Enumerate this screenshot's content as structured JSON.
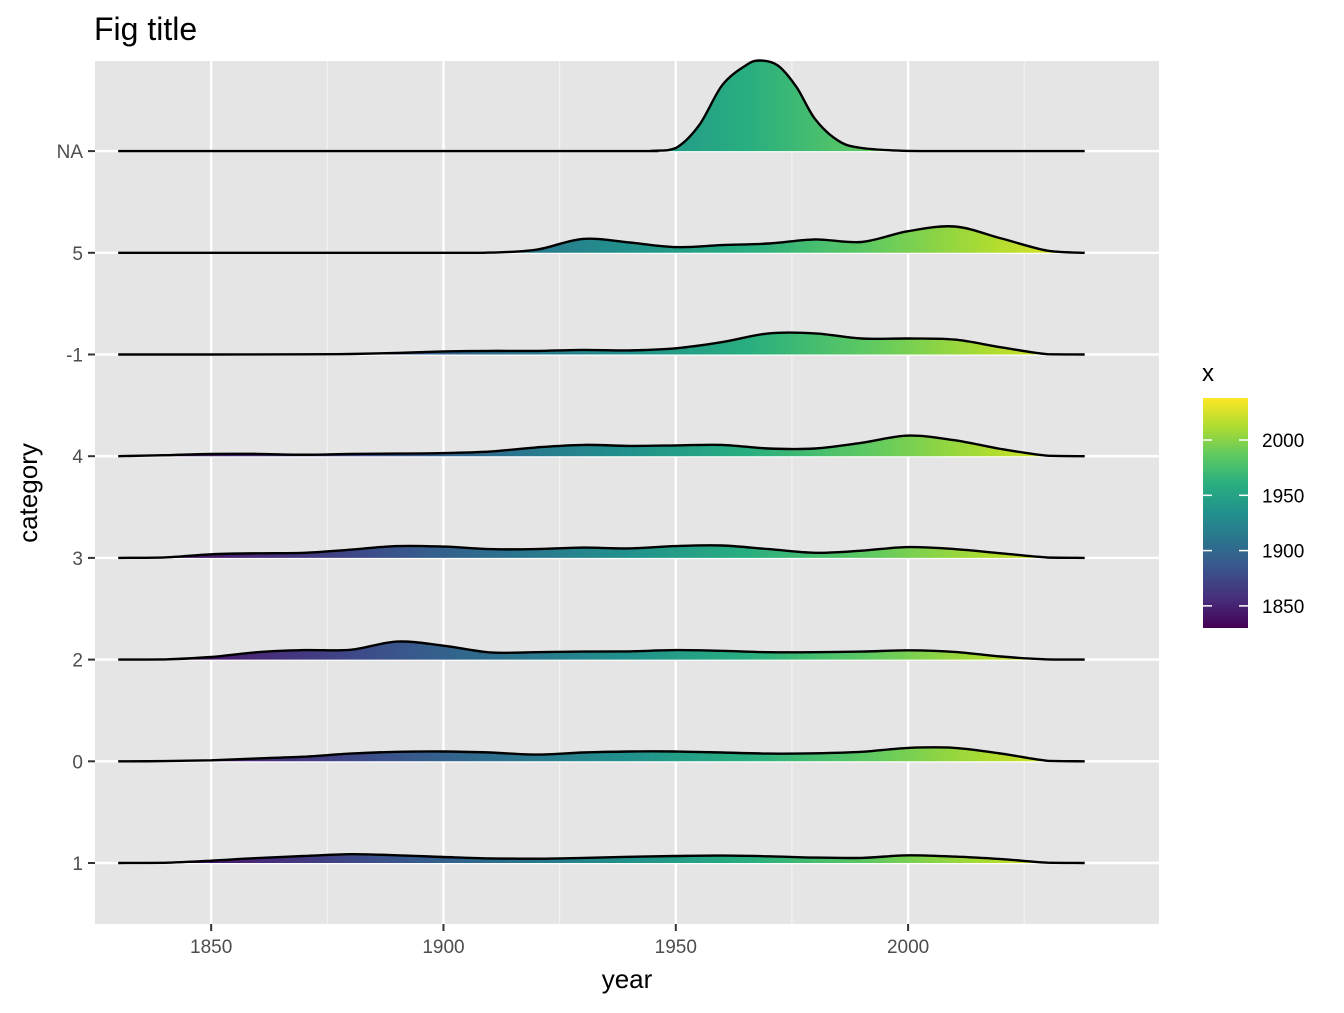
{
  "chart_data": {
    "type": "area",
    "subtype": "ridgeline density",
    "title": "Fig title",
    "xlabel": "year",
    "ylabel": "category",
    "xlim": [
      1825,
      2054
    ],
    "x_ticks": [
      1850,
      1900,
      1950,
      2000
    ],
    "categories": [
      "1",
      "0",
      "2",
      "3",
      "4",
      "-1",
      "5",
      "NA"
    ],
    "grid": true,
    "fill": "gradient by x (viridis)",
    "density_range": [
      1830,
      2038
    ],
    "series": [
      {
        "category": "1",
        "points": [
          [
            1830,
            0
          ],
          [
            1840,
            0.02
          ],
          [
            1850,
            0.22
          ],
          [
            1860,
            0.48
          ],
          [
            1870,
            0.68
          ],
          [
            1880,
            0.85
          ],
          [
            1890,
            0.75
          ],
          [
            1900,
            0.58
          ],
          [
            1910,
            0.45
          ],
          [
            1920,
            0.42
          ],
          [
            1930,
            0.5
          ],
          [
            1940,
            0.6
          ],
          [
            1950,
            0.68
          ],
          [
            1960,
            0.72
          ],
          [
            1970,
            0.65
          ],
          [
            1980,
            0.52
          ],
          [
            1990,
            0.5
          ],
          [
            2000,
            0.75
          ],
          [
            2010,
            0.62
          ],
          [
            2020,
            0.38
          ],
          [
            2030,
            0.03
          ],
          [
            2038,
            0
          ]
        ]
      },
      {
        "category": "0",
        "points": [
          [
            1830,
            0
          ],
          [
            1840,
            0.02
          ],
          [
            1850,
            0.1
          ],
          [
            1860,
            0.28
          ],
          [
            1870,
            0.45
          ],
          [
            1880,
            0.75
          ],
          [
            1890,
            0.92
          ],
          [
            1900,
            0.95
          ],
          [
            1910,
            0.85
          ],
          [
            1920,
            0.65
          ],
          [
            1930,
            0.85
          ],
          [
            1940,
            0.95
          ],
          [
            1950,
            0.95
          ],
          [
            1960,
            0.85
          ],
          [
            1970,
            0.75
          ],
          [
            1980,
            0.78
          ],
          [
            1990,
            0.92
          ],
          [
            2000,
            1.3
          ],
          [
            2010,
            1.3
          ],
          [
            2020,
            0.75
          ],
          [
            2030,
            0.05
          ],
          [
            2038,
            0
          ]
        ]
      },
      {
        "category": "2",
        "points": [
          [
            1830,
            0
          ],
          [
            1840,
            0.02
          ],
          [
            1850,
            0.25
          ],
          [
            1860,
            0.72
          ],
          [
            1870,
            0.92
          ],
          [
            1880,
            0.95
          ],
          [
            1890,
            1.75
          ],
          [
            1900,
            1.35
          ],
          [
            1910,
            0.7
          ],
          [
            1920,
            0.72
          ],
          [
            1930,
            0.78
          ],
          [
            1940,
            0.8
          ],
          [
            1950,
            0.92
          ],
          [
            1960,
            0.85
          ],
          [
            1970,
            0.72
          ],
          [
            1980,
            0.72
          ],
          [
            1990,
            0.78
          ],
          [
            2000,
            0.9
          ],
          [
            2010,
            0.75
          ],
          [
            2020,
            0.3
          ],
          [
            2030,
            0.02
          ],
          [
            2038,
            0
          ]
        ]
      },
      {
        "category": "3",
        "points": [
          [
            1830,
            0
          ],
          [
            1840,
            0.05
          ],
          [
            1850,
            0.35
          ],
          [
            1860,
            0.45
          ],
          [
            1870,
            0.5
          ],
          [
            1880,
            0.8
          ],
          [
            1890,
            1.15
          ],
          [
            1900,
            1.1
          ],
          [
            1910,
            0.85
          ],
          [
            1920,
            0.85
          ],
          [
            1930,
            1.0
          ],
          [
            1940,
            0.92
          ],
          [
            1950,
            1.15
          ],
          [
            1960,
            1.2
          ],
          [
            1970,
            0.85
          ],
          [
            1980,
            0.5
          ],
          [
            1990,
            0.7
          ],
          [
            2000,
            1.05
          ],
          [
            2010,
            0.85
          ],
          [
            2020,
            0.45
          ],
          [
            2030,
            0.04
          ],
          [
            2038,
            0
          ]
        ]
      },
      {
        "category": "4",
        "points": [
          [
            1830,
            0
          ],
          [
            1840,
            0.1
          ],
          [
            1850,
            0.22
          ],
          [
            1860,
            0.22
          ],
          [
            1870,
            0.15
          ],
          [
            1880,
            0.22
          ],
          [
            1890,
            0.25
          ],
          [
            1900,
            0.3
          ],
          [
            1910,
            0.45
          ],
          [
            1920,
            0.85
          ],
          [
            1930,
            1.1
          ],
          [
            1940,
            1.0
          ],
          [
            1950,
            1.05
          ],
          [
            1960,
            1.1
          ],
          [
            1970,
            0.75
          ],
          [
            1980,
            0.75
          ],
          [
            1990,
            1.3
          ],
          [
            2000,
            2.0
          ],
          [
            2010,
            1.55
          ],
          [
            2020,
            0.7
          ],
          [
            2030,
            0.05
          ],
          [
            2038,
            0
          ]
        ]
      },
      {
        "category": "-1",
        "points": [
          [
            1830,
            0
          ],
          [
            1850,
            0
          ],
          [
            1870,
            0.02
          ],
          [
            1880,
            0.05
          ],
          [
            1890,
            0.15
          ],
          [
            1900,
            0.3
          ],
          [
            1910,
            0.35
          ],
          [
            1920,
            0.35
          ],
          [
            1930,
            0.45
          ],
          [
            1940,
            0.4
          ],
          [
            1950,
            0.6
          ],
          [
            1960,
            1.2
          ],
          [
            1970,
            2.05
          ],
          [
            1980,
            2.05
          ],
          [
            1990,
            1.55
          ],
          [
            2000,
            1.55
          ],
          [
            2010,
            1.45
          ],
          [
            2020,
            0.7
          ],
          [
            2030,
            0.03
          ],
          [
            2038,
            0
          ]
        ]
      },
      {
        "category": "5",
        "points": [
          [
            1830,
            0
          ],
          [
            1900,
            0
          ],
          [
            1910,
            0.02
          ],
          [
            1920,
            0.3
          ],
          [
            1930,
            1.35
          ],
          [
            1940,
            1.0
          ],
          [
            1950,
            0.55
          ],
          [
            1960,
            0.75
          ],
          [
            1970,
            0.9
          ],
          [
            1980,
            1.3
          ],
          [
            1990,
            1.05
          ],
          [
            2000,
            2.1
          ],
          [
            2010,
            2.55
          ],
          [
            2020,
            1.4
          ],
          [
            2030,
            0.2
          ],
          [
            2038,
            0
          ]
        ]
      },
      {
        "category": "NA",
        "points": [
          [
            1830,
            0
          ],
          [
            1935,
            0
          ],
          [
            1945,
            0.03
          ],
          [
            1950,
            0.3
          ],
          [
            1955,
            2.5
          ],
          [
            1960,
            6.4
          ],
          [
            1965,
            8.3
          ],
          [
            1968,
            8.8
          ],
          [
            1972,
            8.3
          ],
          [
            1976,
            6.2
          ],
          [
            1980,
            3.1
          ],
          [
            1985,
            1.0
          ],
          [
            1990,
            0.3
          ],
          [
            2000,
            0.02
          ],
          [
            2010,
            0
          ],
          [
            2038,
            0
          ]
        ]
      }
    ],
    "legend": {
      "title": "x",
      "placement": "right",
      "colormap": "viridis",
      "range": [
        1830,
        2038
      ],
      "tick_labels": [
        "1850",
        "1900",
        "1950",
        "2000"
      ]
    }
  }
}
